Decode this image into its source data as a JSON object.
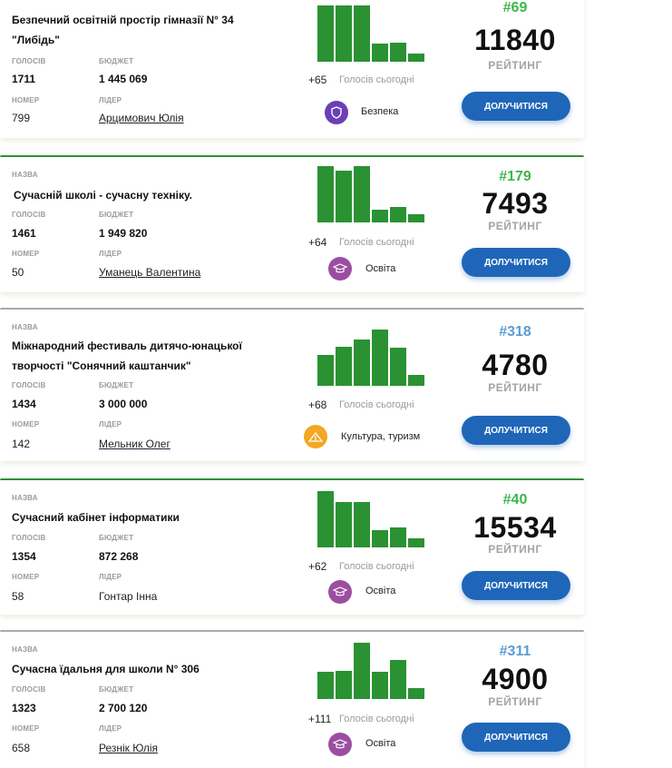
{
  "labels": {
    "name": "НАЗВА",
    "votes": "ГОЛОСІВ",
    "budget": "БЮДЖЕТ",
    "number": "НОМЕР",
    "leader": "ЛІДЕР",
    "votes_today": "Голосів сьогодні",
    "rating": "РЕЙТИНГ",
    "join_button": "ДОЛУЧИТИСЯ"
  },
  "colors": {
    "rank_green": "#3cb64a",
    "rank_blue": "#5b9bd5",
    "bar": "#2a9232",
    "button": "#1f66b8"
  },
  "projects": [
    {
      "title": "Безпечний освітній простір гімназії N° 34 \"Либідь\"",
      "votes": "1711",
      "budget": "1 445 069",
      "number": "799",
      "leader": "Арцимович Юлія",
      "today": "+65",
      "category": "Безпека",
      "category_icon": "shield-icon",
      "category_color": "#6a3fb8",
      "rank": "#69",
      "rating": "11840",
      "bars": [
        1.0,
        1.0,
        1.0,
        0.32,
        0.34,
        0.15
      ]
    },
    {
      "title": "Сучасній школі - сучасну техніку.",
      "votes": "1461",
      "budget": "1 949 820",
      "number": "50",
      "leader": "Уманець Валентина",
      "today": "+64",
      "category": "Освіта",
      "category_icon": "graduation-cap-icon",
      "category_color": "#9b4ea0",
      "rank": "#179",
      "rating": "7493",
      "bars": [
        1.0,
        0.92,
        1.0,
        0.22,
        0.28,
        0.15
      ]
    },
    {
      "title": "Міжнародний фестиваль дитячо-юнацької творчості \"Сонячний каштанчик\"",
      "votes": "1434",
      "budget": "3 000 000",
      "number": "142",
      "leader": "Мельник Олег",
      "today": "+68",
      "category": "Культура, туризм",
      "category_icon": "tent-icon",
      "category_color": "#f5a623",
      "rank": "#318",
      "rating": "4780",
      "bars": [
        0.55,
        0.7,
        0.83,
        1.0,
        0.68,
        0.2
      ]
    },
    {
      "title": "Сучасний кабінет інформатики",
      "votes": "1354",
      "budget": "872 268",
      "number": "58",
      "leader": "Гонтар Інна",
      "today": "+62",
      "category": "Освіта",
      "category_icon": "graduation-cap-icon",
      "category_color": "#9b4ea0",
      "rank": "#40",
      "rating": "15534",
      "bars": [
        1.0,
        0.8,
        0.8,
        0.3,
        0.35,
        0.16
      ]
    },
    {
      "title": "Сучасна їдальня для школи N° 306",
      "votes": "1323",
      "budget": "2 700 120",
      "number": "658",
      "leader": "Резнік Юлія",
      "today": "+111",
      "category": "Освіта",
      "category_icon": "graduation-cap-icon",
      "category_color": "#9b4ea0",
      "rank": "#311",
      "rating": "4900",
      "bars": [
        0.48,
        0.5,
        1.0,
        0.48,
        0.7,
        0.2
      ]
    }
  ]
}
